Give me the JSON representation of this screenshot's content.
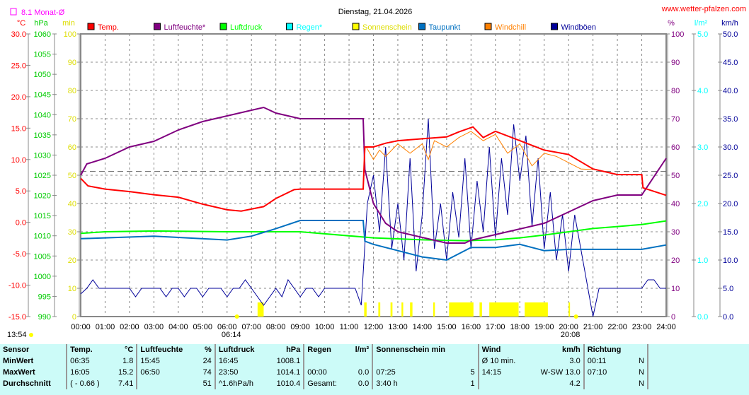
{
  "header": {
    "title": "Dienstag, 21.04.2026",
    "site": "www.wetter-pfalzen.com",
    "month_avg": "8.1 Monat-Ø",
    "time_now": "13:54",
    "sunrise": "06:14",
    "sunset": "20:08"
  },
  "units": {
    "temp": "°C",
    "pressure": "hPa",
    "sun": "min",
    "humidity": "%",
    "rain": "l/m²",
    "wind": "km/h"
  },
  "legend": [
    {
      "label": "Temp.",
      "color": "#ff0000"
    },
    {
      "label": "Luftfeuchte*",
      "color": "#800080"
    },
    {
      "label": "Luftdruck",
      "color": "#00ff00"
    },
    {
      "label": "Regen*",
      "color": "#00ffff"
    },
    {
      "label": "Sonnenschein",
      "color": "#ffff00"
    },
    {
      "label": "Taupunkt",
      "color": "#0070c0"
    },
    {
      "label": "Windchill",
      "color": "#ff8000"
    },
    {
      "label": "Windböen",
      "color": "#000099"
    }
  ],
  "chart_data": {
    "type": "line",
    "title": "Dienstag, 21.04.2026",
    "x_range": [
      0,
      24
    ],
    "x_ticks": [
      "00:00",
      "01:00",
      "02:00",
      "03:00",
      "04:00",
      "05:00",
      "06:00",
      "07:00",
      "08:00",
      "09:00",
      "10:00",
      "11:00",
      "12:00",
      "13:00",
      "14:00",
      "15:00",
      "16:00",
      "17:00",
      "18:00",
      "19:00",
      "20:00",
      "21:00",
      "22:00",
      "23:00",
      "24:00"
    ],
    "axes": {
      "temp": {
        "range": [
          -15,
          30
        ],
        "ticks": [
          "30.0",
          "25.0",
          "20.0",
          "15.0",
          "10.0",
          "5.0",
          "0.0",
          "-5.0",
          "-10.0",
          "-15.0"
        ],
        "color": "#ff0000"
      },
      "pressure": {
        "range": [
          990,
          1060
        ],
        "ticks": [
          "1060",
          "1055",
          "1050",
          "1045",
          "1040",
          "1035",
          "1030",
          "1025",
          "1020",
          "1015",
          "1010",
          "1005",
          "1000",
          "995",
          "990"
        ],
        "color": "#00ff00"
      },
      "sun": {
        "range": [
          0,
          100
        ],
        "ticks": [
          "100",
          "90",
          "80",
          "70",
          "60",
          "50",
          "40",
          "30",
          "20",
          "10",
          "0"
        ],
        "color": "#ffff00"
      },
      "humidity": {
        "range": [
          0,
          100
        ],
        "ticks": [
          "100",
          "90",
          "80",
          "70",
          "60",
          "50",
          "40",
          "30",
          "20",
          "10",
          "0"
        ],
        "color": "#800080"
      },
      "rain": {
        "range": [
          0,
          5
        ],
        "ticks": [
          "5.0",
          "4.0",
          "3.0",
          "2.0",
          "1.0",
          "0.0"
        ],
        "color": "#00ffff"
      },
      "wind": {
        "range": [
          0,
          50
        ],
        "ticks": [
          "50.0",
          "45.0",
          "40.0",
          "35.0",
          "30.0",
          "25.0",
          "20.0",
          "15.0",
          "10.0",
          "5.0",
          "0.0"
        ],
        "color": "#000099"
      }
    },
    "month_avg_temp": 8.1,
    "series": [
      {
        "name": "Temp.",
        "axis": "temp",
        "color": "#ff0000",
        "points": [
          [
            0,
            7.0
          ],
          [
            0.3,
            5.8
          ],
          [
            1,
            5.3
          ],
          [
            2,
            4.9
          ],
          [
            3,
            4.4
          ],
          [
            4,
            4.0
          ],
          [
            5,
            2.9
          ],
          [
            6,
            2.0
          ],
          [
            6.58,
            1.8
          ],
          [
            7.5,
            2.5
          ],
          [
            8,
            3.8
          ],
          [
            8.75,
            5.2
          ],
          [
            9,
            5.3
          ],
          [
            11.58,
            5.3
          ],
          [
            11.65,
            12
          ],
          [
            12,
            12
          ],
          [
            12.5,
            12.6
          ],
          [
            13,
            13
          ],
          [
            14,
            13.3
          ],
          [
            15,
            13.6
          ],
          [
            15.5,
            14.4
          ],
          [
            16.08,
            15.2
          ],
          [
            16.5,
            13.5
          ],
          [
            17,
            14.5
          ],
          [
            18,
            13
          ],
          [
            19,
            11.5
          ],
          [
            20,
            10.8
          ],
          [
            21,
            8.5
          ],
          [
            22,
            7.6
          ],
          [
            23,
            7.6
          ],
          [
            23.05,
            5.5
          ],
          [
            24,
            4.3
          ]
        ]
      },
      {
        "name": "Luftfeuchte*",
        "axis": "humidity",
        "color": "#800080",
        "points": [
          [
            0,
            50
          ],
          [
            0.25,
            54
          ],
          [
            1,
            56
          ],
          [
            2,
            60
          ],
          [
            3,
            62
          ],
          [
            4,
            66
          ],
          [
            5,
            69
          ],
          [
            6,
            71
          ],
          [
            7,
            73
          ],
          [
            7.5,
            74
          ],
          [
            8,
            72
          ],
          [
            9,
            70
          ],
          [
            11.58,
            70
          ],
          [
            11.65,
            52
          ],
          [
            12,
            40
          ],
          [
            12.5,
            33
          ],
          [
            13,
            30
          ],
          [
            14,
            28
          ],
          [
            15,
            26
          ],
          [
            15.75,
            26
          ],
          [
            16,
            27
          ],
          [
            17,
            29
          ],
          [
            18,
            31
          ],
          [
            19,
            33
          ],
          [
            20,
            37
          ],
          [
            21,
            41
          ],
          [
            22,
            43
          ],
          [
            23,
            43
          ],
          [
            24,
            56
          ]
        ]
      },
      {
        "name": "Luftdruck",
        "axis": "pressure",
        "color": "#00ff00",
        "points": [
          [
            0,
            1010.6
          ],
          [
            1,
            1011
          ],
          [
            3,
            1011.2
          ],
          [
            6,
            1011
          ],
          [
            9,
            1011
          ],
          [
            12,
            1009.5
          ],
          [
            14,
            1009
          ],
          [
            15.75,
            1008.8
          ],
          [
            17,
            1009
          ],
          [
            18,
            1009.5
          ],
          [
            19,
            1010.2
          ],
          [
            20,
            1011
          ],
          [
            21,
            1011.8
          ],
          [
            22,
            1012.3
          ],
          [
            23,
            1012.8
          ],
          [
            24,
            1013.7
          ]
        ]
      },
      {
        "name": "Taupunkt",
        "axis": "temp",
        "color": "#0070c0",
        "points": [
          [
            0,
            -2.6
          ],
          [
            3,
            -2.2
          ],
          [
            6,
            -2.8
          ],
          [
            7,
            -2.2
          ],
          [
            8,
            -1
          ],
          [
            9,
            0.3
          ],
          [
            11.58,
            0.3
          ],
          [
            11.65,
            -3
          ],
          [
            12,
            -3.5
          ],
          [
            13,
            -4.5
          ],
          [
            14,
            -5.5
          ],
          [
            15,
            -6
          ],
          [
            16,
            -4
          ],
          [
            17,
            -4
          ],
          [
            18,
            -3.5
          ],
          [
            19,
            -4.5
          ],
          [
            20,
            -4.3
          ],
          [
            21,
            -4.3
          ],
          [
            23,
            -4.3
          ],
          [
            24,
            -3.6
          ]
        ]
      },
      {
        "name": "Windchill",
        "axis": "temp",
        "color": "#ff8000",
        "points": [
          [
            11.7,
            12
          ],
          [
            12,
            10
          ],
          [
            12.25,
            11.5
          ],
          [
            12.5,
            10.5
          ],
          [
            13,
            12.5
          ],
          [
            13.5,
            11
          ],
          [
            14,
            12.5
          ],
          [
            14.25,
            10
          ],
          [
            14.5,
            13
          ],
          [
            15,
            12
          ],
          [
            15.5,
            13.5
          ],
          [
            16,
            14.5
          ],
          [
            16.5,
            13
          ],
          [
            17,
            14
          ],
          [
            17.5,
            11
          ],
          [
            18,
            12.5
          ],
          [
            18.5,
            9
          ],
          [
            19,
            11
          ],
          [
            19.5,
            10.5
          ],
          [
            20,
            9.5
          ],
          [
            20.5,
            8.5
          ],
          [
            21,
            8.4
          ]
        ]
      },
      {
        "name": "Windböen",
        "axis": "wind",
        "color": "#000099",
        "step": 0.25,
        "values": [
          4,
          5,
          6.5,
          5,
          5,
          5,
          5,
          5,
          5,
          3.5,
          5,
          5,
          5,
          5,
          3.5,
          5,
          5,
          3.5,
          5,
          5,
          3.5,
          5,
          5,
          5,
          3.5,
          5,
          5,
          6.5,
          5,
          3.5,
          2,
          3.5,
          5,
          3.5,
          6.5,
          5,
          3.5,
          5,
          5,
          3.5,
          5,
          5,
          5,
          5,
          5,
          5,
          2,
          20,
          25,
          15,
          30,
          12,
          20,
          10,
          28,
          8,
          18,
          35,
          12,
          20,
          10,
          22,
          14,
          28,
          12,
          24,
          15,
          30,
          14,
          28,
          18,
          34,
          24,
          32,
          16,
          28,
          12,
          22,
          10,
          18,
          8,
          18,
          12,
          6,
          0,
          5,
          5,
          5,
          5,
          5,
          5,
          5,
          5,
          6.5,
          6.5,
          5,
          5
        ]
      }
    ],
    "sunshine_intervals": [
      [
        7.25,
        7.5
      ],
      [
        11.62,
        11.72
      ],
      [
        12.2,
        12.28
      ],
      [
        12.7,
        12.78
      ],
      [
        13.15,
        13.22
      ],
      [
        13.5,
        13.6
      ],
      [
        14.45,
        14.52
      ],
      [
        15.1,
        16.1
      ],
      [
        16.35,
        16.45
      ],
      [
        16.75,
        17.95
      ],
      [
        18.2,
        19.15
      ],
      [
        20,
        20.05
      ]
    ]
  },
  "table": {
    "rows": [
      [
        "Sensor",
        "Temp.",
        "°C",
        "Luftfeuchte",
        "%",
        "Luftdruck",
        "hPa",
        "Regen",
        "l/m²",
        "Sonnenschein min",
        "",
        "Wind",
        "km/h",
        "Richtung",
        ""
      ],
      [
        "MinWert",
        "06:35",
        "1.8",
        "15:45",
        "24",
        "16:45",
        "1008.1",
        "",
        "",
        "",
        "",
        "Ø 10 min.",
        "3.0",
        "00:11",
        "N"
      ],
      [
        "MaxWert",
        "16:05",
        "15.2",
        "06:50",
        "74",
        "23:50",
        "1014.1",
        "00:00",
        "0.0",
        "07:25",
        "5",
        "14:15",
        "W-SW 13.0",
        "07:10",
        "N"
      ],
      [
        "Durchschnitt",
        "( - 0.66 )",
        "7.41",
        "",
        "51",
        "^1.6hPa/h",
        "1010.4",
        "Gesamt:",
        "0.0",
        "3:40 h",
        "1",
        "",
        "4.2",
        "",
        "N"
      ]
    ]
  }
}
